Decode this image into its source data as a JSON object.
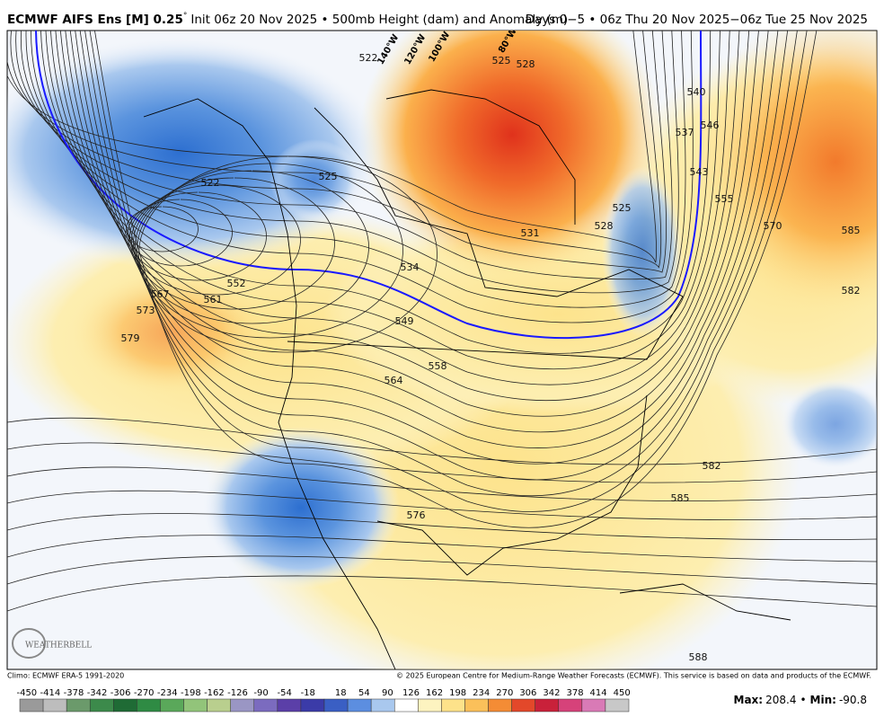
{
  "header": {
    "title": "ECMWF AIFS Ens [M] 0.25",
    "degree": "°",
    "subtitle": "Init 06z 20 Nov 2025 • 500mb Height (dam) and Anomaly (m)",
    "period": "Days 0−5 • 06z Thu 20 Nov 2025−06z Tue 25 Nov 2025"
  },
  "map": {
    "contour_labels": [
      522,
      525,
      528,
      522,
      525,
      534,
      531,
      525,
      528,
      537,
      546,
      540,
      543,
      555,
      570,
      585,
      582,
      552,
      549,
      567,
      561,
      573,
      579,
      558,
      564,
      576,
      582,
      585,
      588
    ],
    "longitude_labels": [
      "140°W",
      "120°W",
      "100°W",
      "80°W"
    ],
    "logo": "WEATHERBELL"
  },
  "footer": {
    "climo": "Climo: ECMWF ERA-5 1991-2020",
    "copyright": "© 2025 European Centre for Medium-Range Weather Forecasts (ECMWF). This service is based on data and products of the ECMWF."
  },
  "colorbar": {
    "labels": [
      -450,
      -414,
      -378,
      -342,
      -306,
      -270,
      -234,
      -198,
      -162,
      -126,
      -90,
      -54,
      -18,
      18,
      54,
      90,
      126,
      162,
      198,
      234,
      270,
      306,
      342,
      378,
      414,
      450
    ]
  },
  "stats": {
    "max_label": "Max:",
    "max": 208.4,
    "separator": "•",
    "min_label": "Min:",
    "min": -90.8
  }
}
